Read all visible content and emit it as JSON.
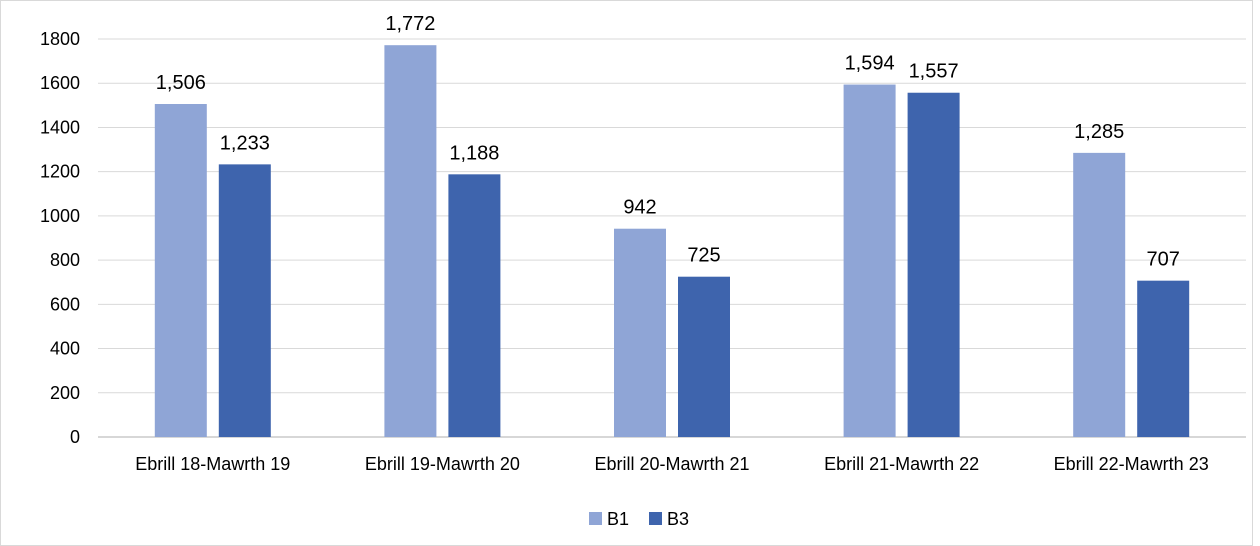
{
  "chart_data": {
    "type": "bar",
    "title": "",
    "xlabel": "",
    "ylabel": "",
    "categories": [
      "Ebrill 18-Mawrth 19",
      "Ebrill 19-Mawrth 20",
      "Ebrill 20-Mawrth 21",
      "Ebrill 21-Mawrth 22",
      "Ebrill 22-Mawrth 23"
    ],
    "series": [
      {
        "name": "B1",
        "color": "#8FA5D6",
        "values": [
          1506,
          1772,
          942,
          1594,
          1285
        ],
        "labels": [
          "1,506",
          "1,772",
          "942",
          "1,594",
          "1,285"
        ]
      },
      {
        "name": "B3",
        "color": "#3E64AD",
        "values": [
          1233,
          1188,
          725,
          1557,
          707
        ],
        "labels": [
          "1,233",
          "1,188",
          "725",
          "1,557",
          "707"
        ]
      }
    ],
    "ylim": [
      0,
      1800
    ],
    "yticks": [
      0,
      200,
      400,
      600,
      800,
      1000,
      1200,
      1400,
      1600,
      1800
    ],
    "grid": true,
    "legend": "bottom-center"
  }
}
